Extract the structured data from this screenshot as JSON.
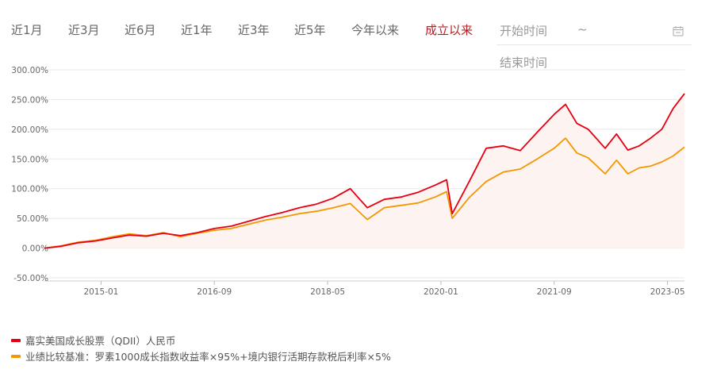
{
  "tabs": [
    {
      "label": "近1月",
      "active": false
    },
    {
      "label": "近3月",
      "active": false
    },
    {
      "label": "近6月",
      "active": false
    },
    {
      "label": "近1年",
      "active": false
    },
    {
      "label": "近3年",
      "active": false
    },
    {
      "label": "近5年",
      "active": false
    },
    {
      "label": "今年以来",
      "active": false
    },
    {
      "label": "成立以来",
      "active": true
    }
  ],
  "date_range": {
    "start_placeholder": "开始时间",
    "separator": "~",
    "end_placeholder": "结束时间",
    "icon": "calendar-icon"
  },
  "colors": {
    "fund": "#e60012",
    "benchmark": "#f39800",
    "active_tab": "#b81c22",
    "area_fill": "#fdf3f1",
    "grid": "#e8e8e8"
  },
  "chart_data": {
    "type": "line",
    "y_axis": {
      "min": -50,
      "max": 300,
      "ticks": [
        "300.00%",
        "250.00%",
        "200.00%",
        "150.00%",
        "100.00%",
        "50.00%",
        "0.00%",
        "-50.00%"
      ],
      "unit": "%"
    },
    "x_axis": {
      "range": [
        "2014-03",
        "2023-08"
      ],
      "ticks": [
        "2015-01",
        "2016-09",
        "2018-05",
        "2020-01",
        "2021-09",
        "2023-05"
      ]
    },
    "grid": true,
    "legend_position": "bottom-left",
    "series": [
      {
        "name": "嘉实美国成长股票（QDII）人民币",
        "color": "#e60012",
        "points": [
          [
            "2014-03",
            0
          ],
          [
            "2014-06",
            3
          ],
          [
            "2014-09",
            9
          ],
          [
            "2014-12",
            12
          ],
          [
            "2015-03",
            17
          ],
          [
            "2015-06",
            22
          ],
          [
            "2015-09",
            20
          ],
          [
            "2015-12",
            25
          ],
          [
            "2016-03",
            21
          ],
          [
            "2016-06",
            26
          ],
          [
            "2016-09",
            33
          ],
          [
            "2016-12",
            37
          ],
          [
            "2017-03",
            45
          ],
          [
            "2017-06",
            53
          ],
          [
            "2017-09",
            60
          ],
          [
            "2017-12",
            68
          ],
          [
            "2018-03",
            74
          ],
          [
            "2018-06",
            84
          ],
          [
            "2018-09",
            100
          ],
          [
            "2018-12",
            68
          ],
          [
            "2019-03",
            82
          ],
          [
            "2019-06",
            86
          ],
          [
            "2019-09",
            94
          ],
          [
            "2019-12",
            106
          ],
          [
            "2020-02",
            115
          ],
          [
            "2020-03",
            58
          ],
          [
            "2020-06",
            112
          ],
          [
            "2020-09",
            168
          ],
          [
            "2020-12",
            172
          ],
          [
            "2021-03",
            164
          ],
          [
            "2021-06",
            195
          ],
          [
            "2021-09",
            225
          ],
          [
            "2021-11",
            242
          ],
          [
            "2022-01",
            210
          ],
          [
            "2022-03",
            200
          ],
          [
            "2022-06",
            168
          ],
          [
            "2022-08",
            192
          ],
          [
            "2022-10",
            165
          ],
          [
            "2022-12",
            172
          ],
          [
            "2023-02",
            185
          ],
          [
            "2023-04",
            200
          ],
          [
            "2023-06",
            235
          ],
          [
            "2023-08",
            260
          ]
        ]
      },
      {
        "name": "业绩比较基准：罗素1000成长指数收益率×95%+境内银行活期存款税后利率×5%",
        "color": "#f39800",
        "points": [
          [
            "2014-03",
            0
          ],
          [
            "2014-06",
            4
          ],
          [
            "2014-09",
            10
          ],
          [
            "2014-12",
            13
          ],
          [
            "2015-03",
            19
          ],
          [
            "2015-06",
            24
          ],
          [
            "2015-09",
            21
          ],
          [
            "2015-12",
            26
          ],
          [
            "2016-03",
            19
          ],
          [
            "2016-06",
            25
          ],
          [
            "2016-09",
            30
          ],
          [
            "2016-12",
            33
          ],
          [
            "2017-03",
            40
          ],
          [
            "2017-06",
            47
          ],
          [
            "2017-09",
            52
          ],
          [
            "2017-12",
            58
          ],
          [
            "2018-03",
            62
          ],
          [
            "2018-06",
            68
          ],
          [
            "2018-09",
            75
          ],
          [
            "2018-12",
            48
          ],
          [
            "2019-03",
            68
          ],
          [
            "2019-06",
            72
          ],
          [
            "2019-09",
            76
          ],
          [
            "2019-12",
            86
          ],
          [
            "2020-02",
            95
          ],
          [
            "2020-03",
            50
          ],
          [
            "2020-06",
            85
          ],
          [
            "2020-09",
            112
          ],
          [
            "2020-12",
            128
          ],
          [
            "2021-03",
            133
          ],
          [
            "2021-06",
            150
          ],
          [
            "2021-09",
            168
          ],
          [
            "2021-11",
            185
          ],
          [
            "2022-01",
            160
          ],
          [
            "2022-03",
            152
          ],
          [
            "2022-06",
            125
          ],
          [
            "2022-08",
            148
          ],
          [
            "2022-10",
            125
          ],
          [
            "2022-12",
            135
          ],
          [
            "2023-02",
            138
          ],
          [
            "2023-04",
            145
          ],
          [
            "2023-06",
            155
          ],
          [
            "2023-08",
            170
          ]
        ]
      }
    ]
  }
}
